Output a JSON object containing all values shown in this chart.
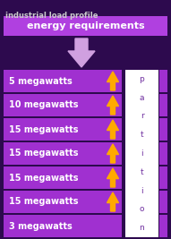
{
  "title": "industrial load profile",
  "header_label": "energy requirements",
  "rows": [
    "5 megawatts",
    "10 megawatts",
    "15 megawatts",
    "15 megawatts",
    "15 megawatts",
    "15 megawatts",
    "3 megawatts"
  ],
  "partition_letters": [
    "p",
    "a",
    "r",
    "t",
    "i",
    "t",
    "i",
    "o",
    "n"
  ],
  "bg_color": "#2d0a4e",
  "header_bg": "#b040e0",
  "row_bg": "#a030d0",
  "white_box_bg": "#ffffff",
  "title_color": "#cccccc",
  "header_text_color": "#ffffff",
  "row_text_color": "#ffffff",
  "partition_text_color": "#7030a0",
  "arrow_down_color": "#d0a0e0",
  "arrow_up_color": "#ffaa00",
  "figsize": [
    1.91,
    2.67
  ],
  "dpi": 100
}
